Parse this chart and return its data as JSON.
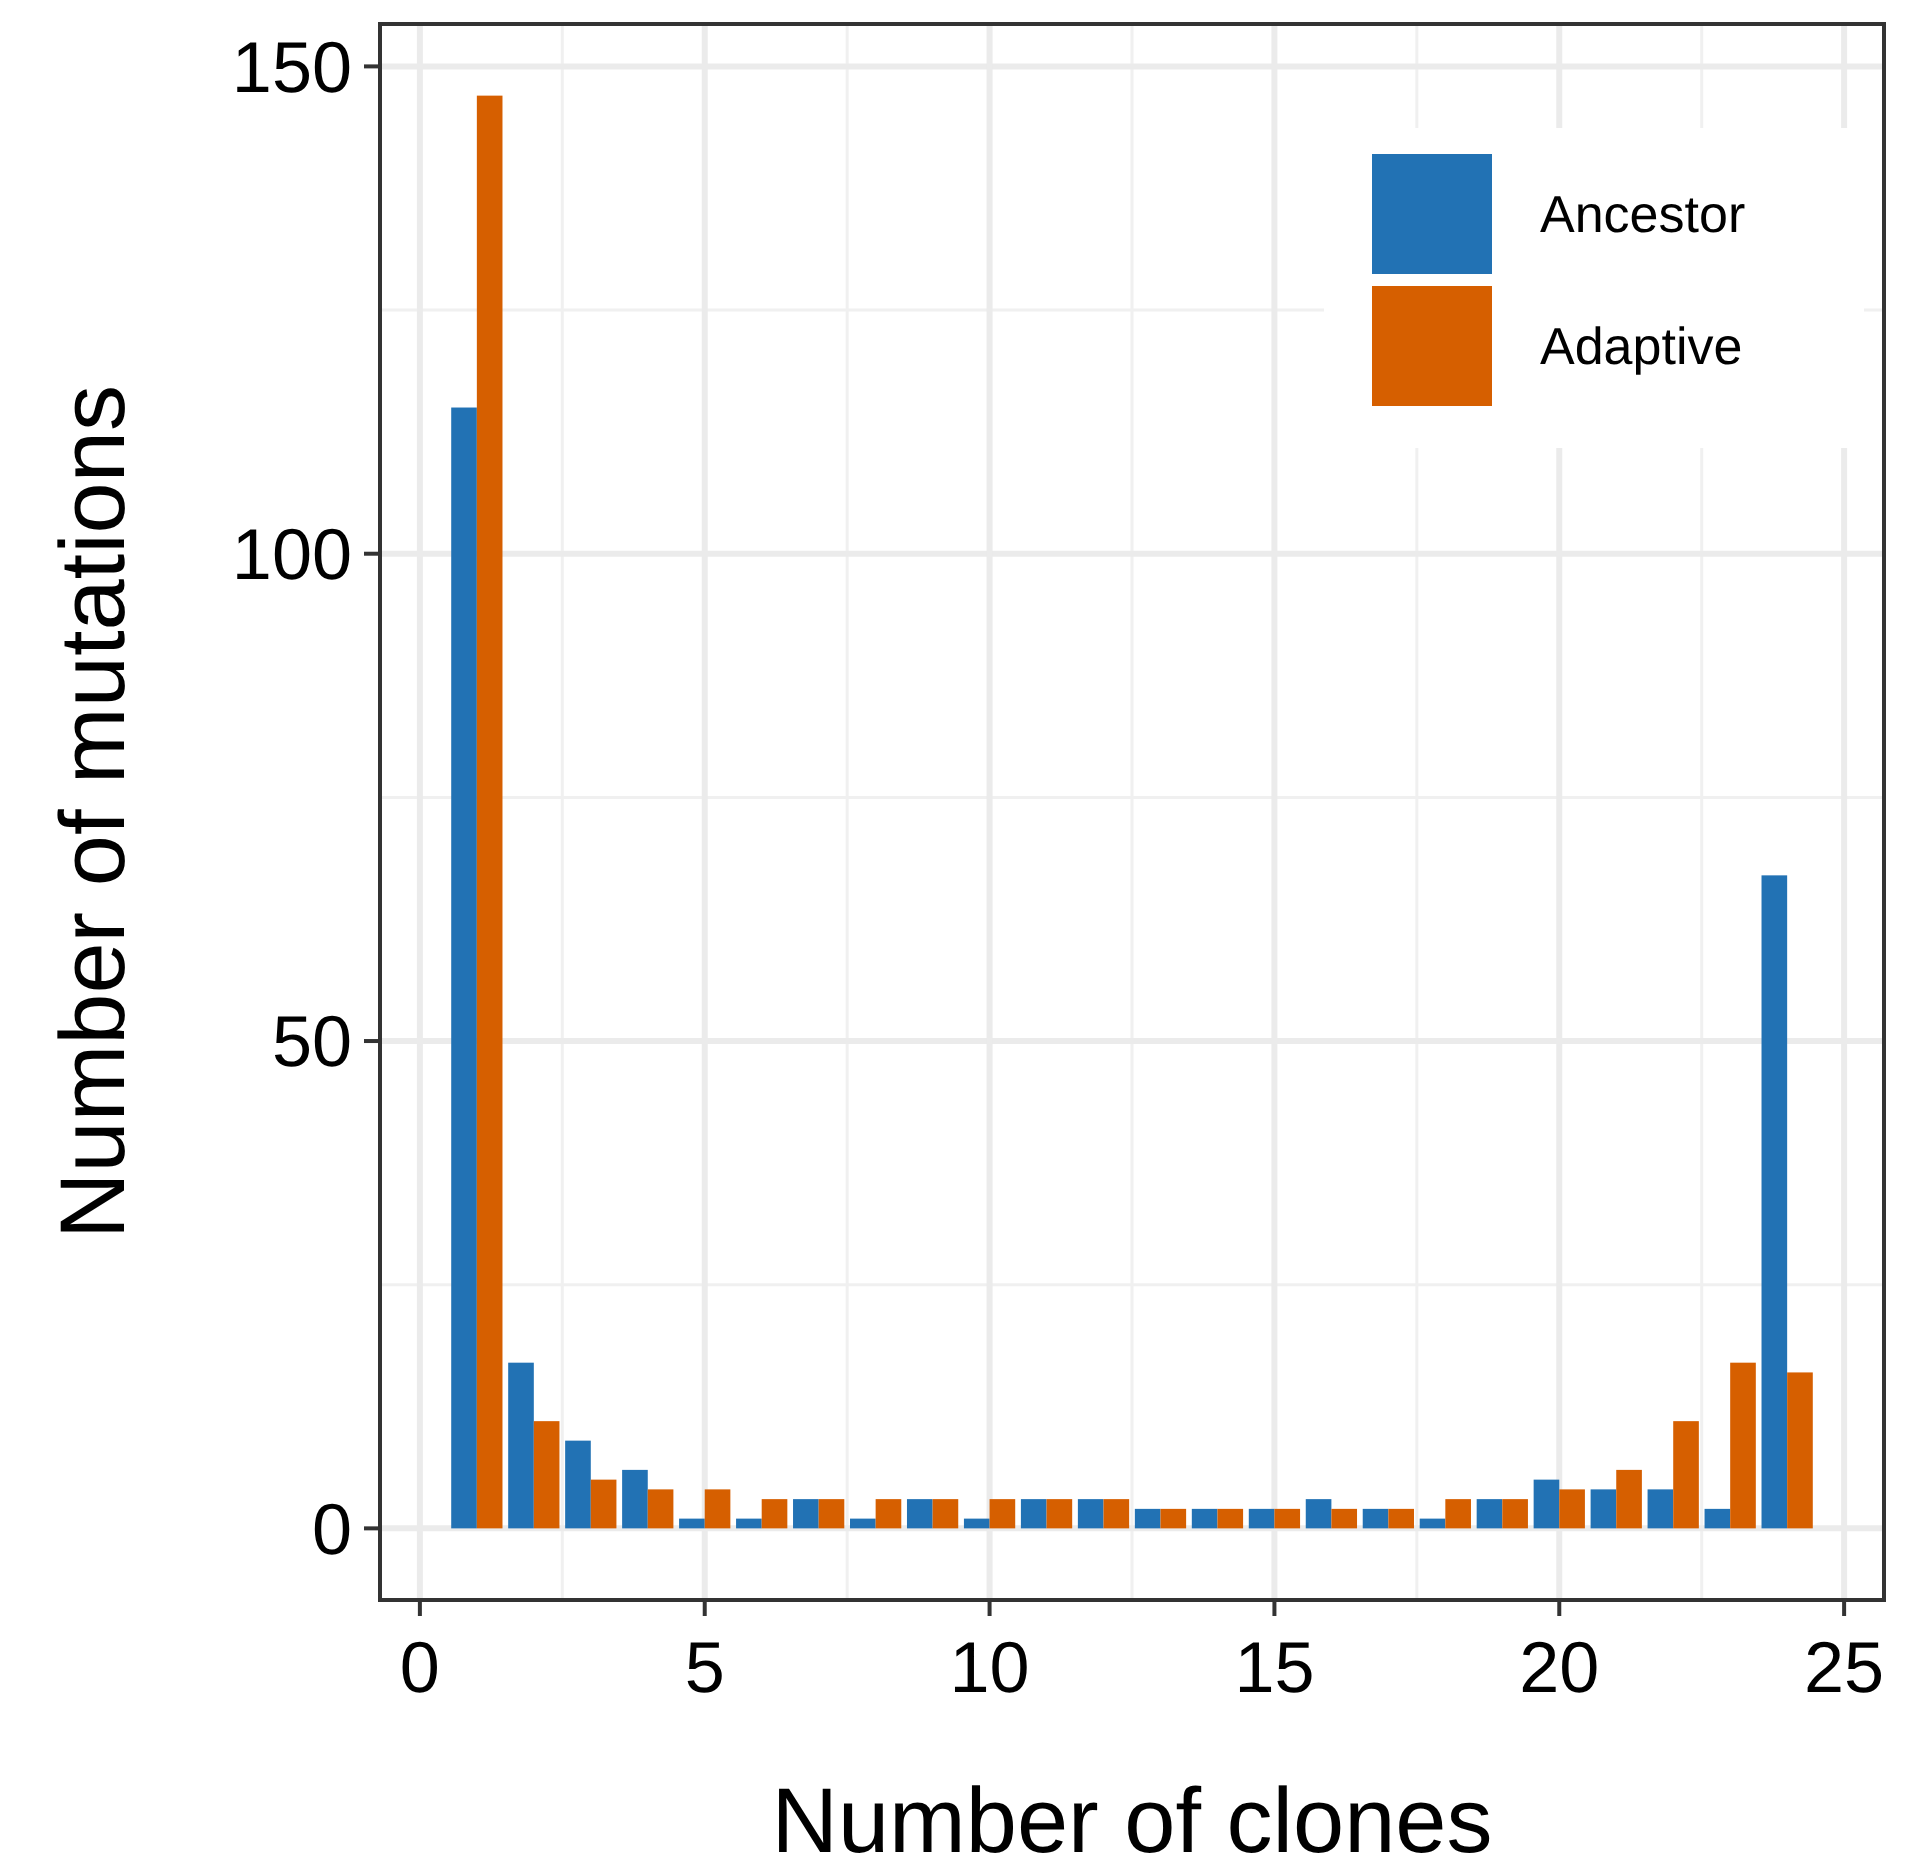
{
  "chart_data": {
    "type": "bar",
    "xlabel": "Number of clones",
    "ylabel": "Number of mutations",
    "x": [
      1,
      2,
      3,
      4,
      5,
      6,
      7,
      8,
      9,
      10,
      11,
      12,
      13,
      14,
      15,
      16,
      17,
      18,
      19,
      20,
      21,
      22,
      23,
      24
    ],
    "series": [
      {
        "name": "Ancestor",
        "color": "#2272b4",
        "values": [
          115,
          17,
          9,
          6,
          1,
          1,
          3,
          1,
          3,
          1,
          3,
          3,
          2,
          2,
          2,
          3,
          2,
          1,
          3,
          5,
          4,
          4,
          2,
          67
        ]
      },
      {
        "name": "Adaptive",
        "color": "#d65f00",
        "values": [
          147,
          11,
          5,
          4,
          4,
          3,
          3,
          3,
          3,
          3,
          3,
          3,
          2,
          2,
          2,
          2,
          2,
          3,
          3,
          4,
          6,
          11,
          17,
          16
        ]
      }
    ],
    "xlim": [
      -0.7,
      25.7
    ],
    "xticks": [
      0,
      5,
      10,
      15,
      20,
      25
    ],
    "ylim": [
      -7.35,
      154.35
    ],
    "yticks": [
      0,
      50,
      100,
      150
    ],
    "grid": true,
    "legend": "top right"
  }
}
